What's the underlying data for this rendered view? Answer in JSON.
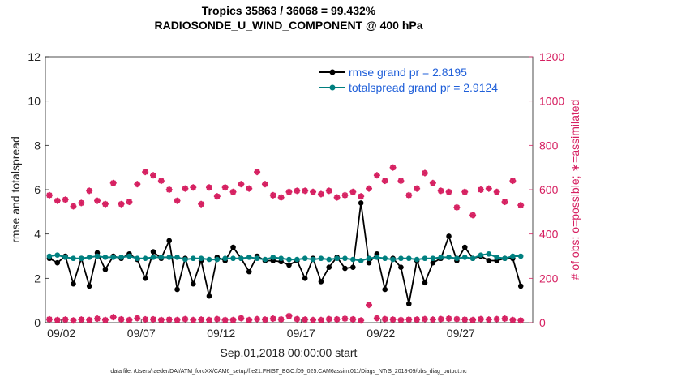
{
  "chart_data": {
    "type": "line",
    "title": [
      "Tropics 35863 / 36068 = 99.432%",
      "RADIOSONDE_U_WIND_COMPONENT @ 400 hPa"
    ],
    "xlabel": "Sep.01,2018 00:00:00 start",
    "ylabel": "rmse and totalspread",
    "y2label": "# of obs: o=possible; ∗=assimilated",
    "footer": "data file: /Users/raeder/DAI/ATM_forcXX/CAM6_setup/f.e21.FHIST_BGC.f09_025.CAM6assim.011/Diags_NTrS_2018-09/obs_diag_output.nc",
    "ylim": [
      0,
      12
    ],
    "y2lim": [
      0,
      1200
    ],
    "xlim_days": [
      0,
      30.5
    ],
    "yticks": [
      "0",
      "2",
      "4",
      "6",
      "8",
      "10",
      "12"
    ],
    "y2ticks": [
      "0",
      "200",
      "400",
      "600",
      "800",
      "1000",
      "1200"
    ],
    "xticks": [
      {
        "day": 1,
        "label": "09/02"
      },
      {
        "day": 6,
        "label": "09/07"
      },
      {
        "day": 11,
        "label": "09/12"
      },
      {
        "day": 16,
        "label": "09/17"
      },
      {
        "day": 21,
        "label": "09/22"
      },
      {
        "day": 26,
        "label": "09/27"
      }
    ],
    "legend": {
      "placement": "top-right",
      "entries": [
        {
          "label": "rmse grand pr = 2.8195",
          "color": "#000000"
        },
        {
          "label": "totalspread grand pr = 2.9124",
          "color": "#007f7f"
        }
      ]
    },
    "colors": {
      "rmse": "#000000",
      "spread": "#008080",
      "obs": "#d62061",
      "legend_text": "#1f5fd9"
    },
    "x_days": [
      0.25,
      0.75,
      1.25,
      1.75,
      2.25,
      2.75,
      3.25,
      3.75,
      4.25,
      4.75,
      5.25,
      5.75,
      6.25,
      6.75,
      7.25,
      7.75,
      8.25,
      8.75,
      9.25,
      9.75,
      10.25,
      10.75,
      11.25,
      11.75,
      12.25,
      12.75,
      13.25,
      13.75,
      14.25,
      14.75,
      15.25,
      15.75,
      16.25,
      16.75,
      17.25,
      17.75,
      18.25,
      18.75,
      19.25,
      19.75,
      20.25,
      20.75,
      21.25,
      21.75,
      22.25,
      22.75,
      23.25,
      23.75,
      24.25,
      24.75,
      25.25,
      25.75,
      26.25,
      26.75,
      27.25,
      27.75,
      28.25,
      28.75,
      29.25,
      29.75
    ],
    "series": [
      {
        "name": "rmse",
        "axis": "left",
        "values": [
          2.9,
          2.7,
          3.0,
          1.75,
          2.9,
          1.65,
          3.15,
          2.4,
          3.0,
          2.9,
          3.1,
          2.85,
          2.0,
          3.2,
          2.9,
          3.7,
          1.5,
          2.9,
          1.75,
          2.8,
          1.2,
          2.95,
          2.8,
          3.4,
          2.9,
          2.3,
          3.0,
          2.8,
          2.8,
          2.75,
          2.6,
          2.8,
          2.0,
          2.9,
          1.85,
          2.5,
          2.95,
          2.45,
          2.5,
          5.4,
          2.7,
          3.1,
          1.5,
          2.9,
          2.5,
          0.85,
          2.8,
          1.8,
          2.7,
          2.9,
          3.9,
          2.8,
          3.4,
          2.9,
          3.0,
          2.8,
          2.8,
          2.9,
          2.9,
          1.65
        ]
      },
      {
        "name": "totalspread",
        "axis": "left",
        "values": [
          3.0,
          3.05,
          2.95,
          2.9,
          2.9,
          2.95,
          3.0,
          2.95,
          2.95,
          2.95,
          3.0,
          2.9,
          2.9,
          2.95,
          2.95,
          2.95,
          2.95,
          2.85,
          2.9,
          2.9,
          2.85,
          2.85,
          2.9,
          2.9,
          2.9,
          2.95,
          2.9,
          2.85,
          2.95,
          2.9,
          2.85,
          2.85,
          2.9,
          2.85,
          2.9,
          2.85,
          2.9,
          2.9,
          2.85,
          2.8,
          2.9,
          2.95,
          2.9,
          2.85,
          2.9,
          2.9,
          2.85,
          2.9,
          2.9,
          2.95,
          2.95,
          2.9,
          2.95,
          2.9,
          3.05,
          3.1,
          2.95,
          2.9,
          3.0,
          3.0
        ]
      },
      {
        "name": "obs_possible",
        "axis": "right",
        "values": [
          575,
          550,
          555,
          525,
          540,
          595,
          550,
          535,
          630,
          535,
          545,
          625,
          680,
          665,
          640,
          600,
          550,
          605,
          610,
          535,
          610,
          570,
          610,
          590,
          625,
          605,
          680,
          625,
          575,
          565,
          590,
          595,
          595,
          590,
          580,
          595,
          565,
          575,
          590,
          570,
          605,
          665,
          640,
          700,
          640,
          575,
          605,
          675,
          630,
          595,
          590,
          520,
          590,
          485,
          600,
          605,
          590,
          545,
          640,
          530
        ]
      },
      {
        "name": "obs_assimilated",
        "axis": "right",
        "values": [
          15,
          12,
          14,
          10,
          14,
          12,
          18,
          12,
          25,
          15,
          12,
          20,
          15,
          15,
          12,
          14,
          12,
          16,
          12,
          14,
          12,
          16,
          12,
          12,
          20,
          12,
          16,
          14,
          18,
          15,
          30,
          16,
          14,
          12,
          12,
          16,
          15,
          18,
          15,
          10,
          80,
          20,
          16,
          14,
          12,
          14,
          14,
          16,
          14,
          16,
          18,
          16,
          14,
          12,
          16,
          14,
          16,
          18,
          12,
          10
        ]
      }
    ]
  }
}
